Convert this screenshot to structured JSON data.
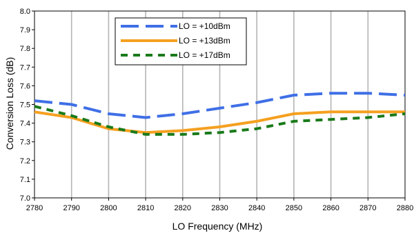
{
  "chart_data": {
    "type": "line",
    "title": "",
    "xlabel": "LO Frequency (MHz)",
    "ylabel": "Conversion Loss (dB)",
    "xlim": [
      2780,
      2880
    ],
    "ylim": [
      7.0,
      8.0
    ],
    "x_ticks": [
      "2780",
      "2790",
      "2800",
      "2810",
      "2820",
      "2830",
      "2840",
      "2850",
      "2860",
      "2870",
      "2880"
    ],
    "y_ticks": [
      "7.0",
      "7.1",
      "7.2",
      "7.3",
      "7.4",
      "7.5",
      "7.6",
      "7.7",
      "7.8",
      "7.9",
      "8.0"
    ],
    "grid": {
      "vertical": true,
      "horizontal": false
    },
    "legend_position": "top-left",
    "series": [
      {
        "name": "LO = +10dBm",
        "color": "#3f6fe6",
        "style": "long-dash",
        "x": [
          2780,
          2790,
          2800,
          2810,
          2820,
          2830,
          2840,
          2850,
          2860,
          2870,
          2880
        ],
        "y": [
          7.52,
          7.5,
          7.45,
          7.43,
          7.45,
          7.48,
          7.51,
          7.55,
          7.56,
          7.56,
          7.55
        ]
      },
      {
        "name": "LO = +13dBm",
        "color": "#f5a020",
        "style": "solid",
        "x": [
          2780,
          2790,
          2800,
          2810,
          2820,
          2830,
          2840,
          2850,
          2860,
          2870,
          2880
        ],
        "y": [
          7.46,
          7.43,
          7.37,
          7.35,
          7.36,
          7.38,
          7.41,
          7.45,
          7.46,
          7.46,
          7.46
        ]
      },
      {
        "name": "LO = +17dBm",
        "color": "#1a7a1a",
        "style": "short-dash",
        "x": [
          2780,
          2790,
          2800,
          2810,
          2820,
          2830,
          2840,
          2850,
          2860,
          2870,
          2880
        ],
        "y": [
          7.49,
          7.44,
          7.38,
          7.34,
          7.34,
          7.35,
          7.37,
          7.41,
          7.42,
          7.43,
          7.45
        ]
      }
    ]
  }
}
